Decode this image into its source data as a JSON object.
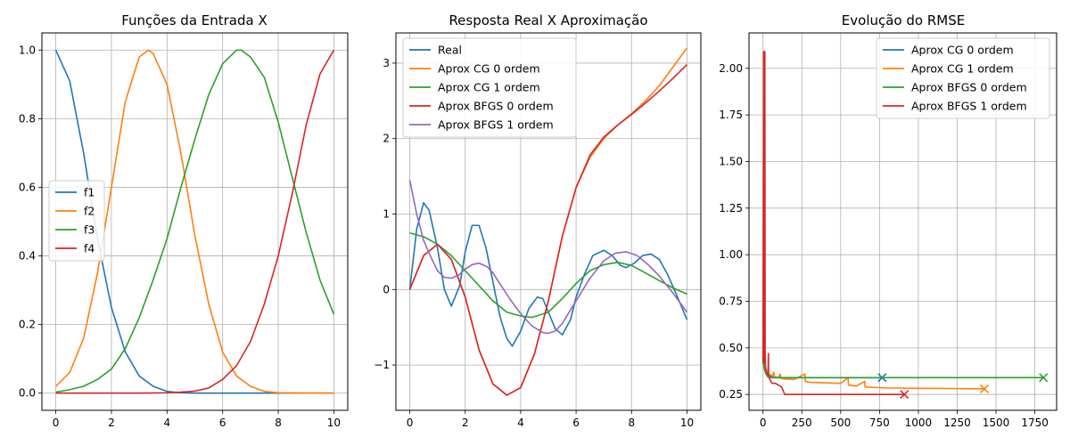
{
  "chart_data": [
    {
      "type": "line",
      "title": "Funções da Entrada X",
      "xlabel": "",
      "ylabel": "",
      "xlim": [
        -0.5,
        10.5
      ],
      "ylim": [
        -0.05,
        1.05
      ],
      "xticks": [
        0,
        2,
        4,
        6,
        8,
        10
      ],
      "yticks": [
        0.0,
        0.2,
        0.4,
        0.6,
        0.8,
        1.0
      ],
      "ytick_decimals": 1,
      "grid": true,
      "legend": "center-left",
      "series": [
        {
          "name": "f1",
          "color": "#1f77b4",
          "x": [
            0,
            0.5,
            1,
            1.5,
            2,
            2.5,
            3,
            3.5,
            4,
            4.5,
            5,
            6,
            7,
            8,
            9,
            10
          ],
          "y": [
            1.0,
            0.91,
            0.7,
            0.45,
            0.25,
            0.12,
            0.05,
            0.02,
            0.005,
            0.001,
            0,
            0,
            0,
            0,
            0,
            0
          ]
        },
        {
          "name": "f2",
          "color": "#ff7f0e",
          "x": [
            0,
            0.5,
            1,
            1.5,
            2,
            2.5,
            3,
            3.333,
            3.5,
            4,
            4.5,
            5,
            5.5,
            6,
            6.5,
            7,
            7.5,
            8,
            9,
            10
          ],
          "y": [
            0.02,
            0.06,
            0.16,
            0.35,
            0.6,
            0.85,
            0.98,
            1.0,
            0.99,
            0.9,
            0.7,
            0.46,
            0.26,
            0.12,
            0.05,
            0.02,
            0.005,
            0.001,
            0,
            0
          ]
        },
        {
          "name": "f3",
          "color": "#2ca02c",
          "x": [
            0,
            0.5,
            1,
            1.5,
            2,
            2.5,
            3,
            3.5,
            4,
            4.5,
            5,
            5.5,
            6,
            6.5,
            6.667,
            7,
            7.5,
            8,
            8.5,
            9,
            9.5,
            10
          ],
          "y": [
            0.003,
            0.01,
            0.02,
            0.04,
            0.07,
            0.13,
            0.22,
            0.33,
            0.45,
            0.6,
            0.74,
            0.87,
            0.96,
            1.0,
            1.0,
            0.98,
            0.92,
            0.79,
            0.63,
            0.47,
            0.33,
            0.23
          ]
        },
        {
          "name": "f4",
          "color": "#d62728",
          "x": [
            0,
            1,
            2,
            3,
            4,
            4.5,
            5,
            5.5,
            6,
            6.5,
            7,
            7.5,
            8,
            8.5,
            9,
            9.5,
            10
          ],
          "y": [
            0,
            0,
            0,
            0,
            0.001,
            0.003,
            0.006,
            0.015,
            0.04,
            0.08,
            0.15,
            0.26,
            0.4,
            0.58,
            0.78,
            0.93,
            1.0
          ]
        }
      ]
    },
    {
      "type": "line",
      "title": "Resposta Real X Aproximação",
      "xlabel": "",
      "ylabel": "",
      "xlim": [
        -0.5,
        10.5
      ],
      "ylim": [
        -1.6,
        3.4
      ],
      "xticks": [
        0,
        2,
        4,
        6,
        8,
        10
      ],
      "yticks": [
        -1,
        0,
        1,
        2,
        3
      ],
      "ytick_decimals": 0,
      "grid": true,
      "legend": "top-left",
      "series": [
        {
          "name": "Real",
          "color": "#1f77b4",
          "x": [
            0,
            0.25,
            0.5,
            0.7,
            1.0,
            1.25,
            1.5,
            1.8,
            2.0,
            2.25,
            2.5,
            2.75,
            3.0,
            3.25,
            3.5,
            3.7,
            4.0,
            4.3,
            4.6,
            4.8,
            5.0,
            5.25,
            5.5,
            5.8,
            6.0,
            6.3,
            6.6,
            7.0,
            7.3,
            7.6,
            7.8,
            8.1,
            8.4,
            8.7,
            9.0,
            9.3,
            9.6,
            10.0
          ],
          "y": [
            0,
            0.8,
            1.15,
            1.05,
            0.55,
            0.0,
            -0.22,
            0.05,
            0.5,
            0.85,
            0.85,
            0.55,
            0.1,
            -0.35,
            -0.65,
            -0.75,
            -0.55,
            -0.25,
            -0.1,
            -0.12,
            -0.3,
            -0.52,
            -0.6,
            -0.4,
            -0.1,
            0.2,
            0.45,
            0.52,
            0.45,
            0.32,
            0.29,
            0.35,
            0.45,
            0.47,
            0.4,
            0.2,
            -0.05,
            -0.4
          ]
        },
        {
          "name": "Aprox CG 0 ordem",
          "color": "#ff7f0e",
          "x": [
            0,
            0.5,
            1.0,
            1.5,
            2.0,
            2.5,
            3.0,
            3.5,
            4.0,
            4.5,
            5.0,
            5.5,
            6.0,
            6.5,
            7.0,
            7.5,
            8.0,
            8.5,
            9.0,
            9.5,
            10.0
          ],
          "y": [
            0,
            0.45,
            0.6,
            0.4,
            -0.1,
            -0.8,
            -1.25,
            -1.4,
            -1.3,
            -0.85,
            -0.15,
            0.7,
            1.35,
            1.75,
            2.0,
            2.18,
            2.33,
            2.5,
            2.7,
            2.95,
            3.2
          ]
        },
        {
          "name": "Aprox CG 1 ordem",
          "color": "#2ca02c",
          "x": [
            0,
            0.5,
            1.0,
            1.5,
            2.0,
            2.5,
            3.0,
            3.5,
            4.0,
            4.4,
            5.0,
            5.5,
            6.0,
            6.5,
            7.0,
            7.5,
            8.0,
            8.5,
            9.0,
            9.5,
            10.0
          ],
          "y": [
            0.75,
            0.7,
            0.6,
            0.45,
            0.25,
            0.05,
            -0.15,
            -0.3,
            -0.35,
            -0.37,
            -0.3,
            -0.12,
            0.08,
            0.25,
            0.33,
            0.36,
            0.32,
            0.22,
            0.12,
            0.02,
            -0.06
          ]
        },
        {
          "name": "Aprox BFGS 0 ordem",
          "color": "#d62728",
          "x": [
            0,
            0.5,
            1.0,
            1.5,
            2.0,
            2.5,
            3.0,
            3.5,
            4.0,
            4.5,
            5.0,
            5.5,
            6.0,
            6.5,
            7.0,
            7.5,
            8.0,
            8.5,
            9.0,
            9.5,
            10.0
          ],
          "y": [
            0,
            0.45,
            0.6,
            0.4,
            -0.1,
            -0.8,
            -1.25,
            -1.4,
            -1.3,
            -0.85,
            -0.15,
            0.7,
            1.35,
            1.78,
            2.02,
            2.18,
            2.32,
            2.47,
            2.63,
            2.8,
            2.98
          ]
        },
        {
          "name": "Aprox BFGS 1 ordem",
          "color": "#9467bd",
          "x": [
            0,
            0.25,
            0.5,
            0.8,
            1.0,
            1.25,
            1.5,
            1.8,
            2.0,
            2.25,
            2.5,
            2.8,
            3.0,
            3.3,
            3.6,
            4.0,
            4.4,
            4.8,
            5.0,
            5.25,
            5.5,
            6.0,
            6.5,
            7.0,
            7.4,
            7.8,
            8.2,
            8.6,
            9.0,
            9.5,
            10.0
          ],
          "y": [
            1.45,
            1.0,
            0.65,
            0.4,
            0.25,
            0.16,
            0.15,
            0.2,
            0.27,
            0.33,
            0.35,
            0.3,
            0.22,
            0.05,
            -0.12,
            -0.32,
            -0.48,
            -0.57,
            -0.58,
            -0.55,
            -0.45,
            -0.15,
            0.15,
            0.38,
            0.48,
            0.5,
            0.45,
            0.33,
            0.18,
            -0.05,
            -0.3
          ]
        }
      ]
    },
    {
      "type": "line",
      "title": "Evolução do RMSE",
      "xlabel": "",
      "ylabel": "",
      "xlim": [
        -90,
        1890
      ],
      "ylim": [
        0.165,
        2.19
      ],
      "xticks": [
        0,
        250,
        500,
        750,
        1000,
        1250,
        1500,
        1750
      ],
      "yticks": [
        0.25,
        0.5,
        0.75,
        1.0,
        1.25,
        1.5,
        1.75,
        2.0
      ],
      "ytick_decimals": 2,
      "grid": true,
      "legend": "top-right",
      "series": [
        {
          "name": "Aprox CG 0 ordem",
          "color": "#1f77b4",
          "end_marker": "x",
          "x": [
            0,
            5,
            10,
            15,
            20,
            30,
            50,
            100,
            300,
            500,
            767
          ],
          "y": [
            0.42,
            0.41,
            0.43,
            0.4,
            0.38,
            0.36,
            0.345,
            0.34,
            0.34,
            0.34,
            0.34
          ]
        },
        {
          "name": "Aprox CG 1 ordem",
          "color": "#ff7f0e",
          "end_marker": "x",
          "x": [
            0,
            10,
            20,
            40,
            60,
            70,
            75,
            80,
            100,
            110,
            115,
            120,
            200,
            270,
            272,
            275,
            300,
            500,
            548,
            550,
            555,
            600,
            655,
            657,
            660,
            700,
            800,
            1000,
            1200,
            1425
          ],
          "y": [
            0.42,
            0.4,
            0.38,
            0.36,
            0.35,
            0.37,
            0.34,
            0.345,
            0.34,
            0.36,
            0.34,
            0.335,
            0.33,
            0.36,
            0.32,
            0.32,
            0.315,
            0.31,
            0.34,
            0.3,
            0.3,
            0.295,
            0.32,
            0.29,
            0.29,
            0.288,
            0.285,
            0.283,
            0.282,
            0.28
          ]
        },
        {
          "name": "Aprox BFGS 0 ordem",
          "color": "#2ca02c",
          "end_marker": "x",
          "x": [
            0,
            10,
            20,
            30,
            50,
            100,
            500,
            1000,
            1500,
            1805
          ],
          "y": [
            0.42,
            0.38,
            0.36,
            0.345,
            0.34,
            0.34,
            0.34,
            0.34,
            0.34,
            0.34
          ]
        },
        {
          "name": "Aprox BFGS 1 ordem",
          "color": "#d62728",
          "end_marker": "x",
          "x": [
            0,
            2,
            4,
            6,
            8,
            10,
            12,
            14,
            16,
            18,
            20,
            24,
            28,
            32,
            35,
            36,
            38,
            40,
            45,
            50,
            60,
            70,
            80,
            100,
            120,
            130,
            140,
            200,
            400,
            600,
            800,
            910
          ],
          "y": [
            0.42,
            1.2,
            2.09,
            0.6,
            0.45,
            0.42,
            2.09,
            0.45,
            0.4,
            0.38,
            0.37,
            0.36,
            0.36,
            0.355,
            0.47,
            0.35,
            0.35,
            0.34,
            0.33,
            0.32,
            0.31,
            0.31,
            0.31,
            0.3,
            0.29,
            0.27,
            0.25,
            0.25,
            0.25,
            0.25,
            0.25,
            0.25
          ]
        }
      ]
    }
  ]
}
